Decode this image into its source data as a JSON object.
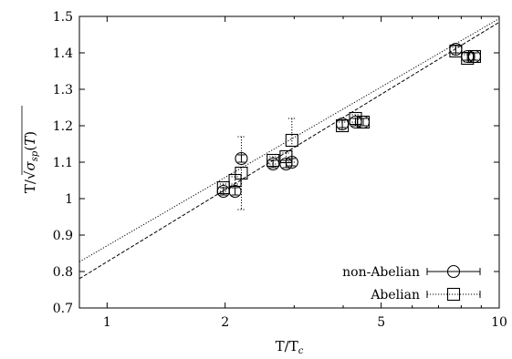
{
  "chart_data": {
    "type": "scatter",
    "xlabel": "T/T_c",
    "ylabel": "T/√σ_sp(T)",
    "xscale": "log",
    "xlim": [
      0.85,
      10
    ],
    "ylim": [
      0.7,
      1.5
    ],
    "xticks": [
      1,
      2,
      5,
      10
    ],
    "yticks": [
      0.7,
      0.8,
      0.9,
      1,
      1.1,
      1.2,
      1.3,
      1.4,
      1.5
    ],
    "grid": false,
    "legend_position": "bottom-right",
    "series": [
      {
        "name": "non-Abelian",
        "marker": "circle",
        "line_style": "solid",
        "points": [
          {
            "x": 1.98,
            "y": 1.02,
            "err": 0.01
          },
          {
            "x": 2.12,
            "y": 1.02,
            "err": 0.01
          },
          {
            "x": 2.2,
            "y": 1.11,
            "err": 0.01
          },
          {
            "x": 2.65,
            "y": 1.095,
            "err": 0.01
          },
          {
            "x": 2.86,
            "y": 1.095,
            "err": 0.01
          },
          {
            "x": 2.96,
            "y": 1.1,
            "err": 0.01
          },
          {
            "x": 3.98,
            "y": 1.205,
            "err": 0.01
          },
          {
            "x": 4.3,
            "y": 1.21,
            "err": 0.01
          },
          {
            "x": 4.5,
            "y": 1.21,
            "err": 0.01
          },
          {
            "x": 7.75,
            "y": 1.41,
            "err": 0.01
          },
          {
            "x": 8.3,
            "y": 1.39,
            "err": 0.01
          },
          {
            "x": 8.65,
            "y": 1.39,
            "err": 0.01
          }
        ],
        "fit": {
          "slope": 0.2855,
          "intercept": 0.8267
        }
      },
      {
        "name": "Abelian",
        "marker": "square",
        "line_style": "dotted",
        "points": [
          {
            "x": 1.98,
            "y": 1.03,
            "err": 0.01
          },
          {
            "x": 2.12,
            "y": 1.05,
            "err": 0.01
          },
          {
            "x": 2.2,
            "y": 1.07,
            "err": 0.1
          },
          {
            "x": 2.65,
            "y": 1.105,
            "err": 0.01
          },
          {
            "x": 2.86,
            "y": 1.115,
            "err": 0.01
          },
          {
            "x": 2.96,
            "y": 1.16,
            "err": 0.06
          },
          {
            "x": 3.98,
            "y": 1.2,
            "err": 0.01
          },
          {
            "x": 4.3,
            "y": 1.22,
            "err": 0.01
          },
          {
            "x": 4.5,
            "y": 1.21,
            "err": 0.01
          },
          {
            "x": 7.75,
            "y": 1.405,
            "err": 0.01
          },
          {
            "x": 8.3,
            "y": 1.385,
            "err": 0.01
          },
          {
            "x": 8.65,
            "y": 1.39,
            "err": 0.01
          }
        ],
        "fit": {
          "slope": 0.2707,
          "intercept": 0.8707
        }
      }
    ]
  }
}
